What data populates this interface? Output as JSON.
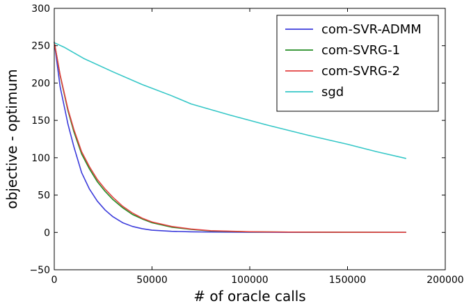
{
  "chart_data": {
    "type": "line",
    "title": "",
    "xlabel": "# of oracle calls",
    "ylabel": "objective - optimum",
    "xlim": [
      0,
      200000
    ],
    "ylim": [
      -50,
      300
    ],
    "xticks": [
      0,
      50000,
      100000,
      150000,
      200000
    ],
    "xtick_labels": [
      "0",
      "50000",
      "100000",
      "150000",
      "200000"
    ],
    "yticks": [
      -50,
      0,
      50,
      100,
      150,
      200,
      250,
      300
    ],
    "ytick_labels": [
      "−50",
      "0",
      "50",
      "100",
      "150",
      "200",
      "250",
      "300"
    ],
    "grid": false,
    "legend_position": "top-right",
    "series": [
      {
        "name": "com-SVR-ADMM",
        "color": "#3b3bdb",
        "x": [
          0,
          3000,
          7000,
          10000,
          14000,
          18000,
          22000,
          26000,
          30000,
          35000,
          40000,
          45000,
          50000,
          60000,
          70000,
          80000,
          100000,
          120000,
          150000,
          180000
        ],
        "y": [
          255,
          195,
          145,
          115,
          80,
          58,
          42,
          30,
          21,
          13,
          8,
          5,
          3,
          1.5,
          0.8,
          0.5,
          0.2,
          0.1,
          0.1,
          0.1
        ]
      },
      {
        "name": "com-SVRG-1",
        "color": "#238b23",
        "x": [
          0,
          3000,
          7000,
          10000,
          14000,
          18000,
          22000,
          26000,
          30000,
          35000,
          40000,
          45000,
          50000,
          60000,
          70000,
          80000,
          100000,
          120000,
          150000,
          180000
        ],
        "y": [
          255,
          210,
          163,
          135,
          105,
          85,
          68,
          55,
          44,
          33,
          24,
          18,
          13,
          7,
          4,
          2,
          0.8,
          0.4,
          0.2,
          0.1
        ]
      },
      {
        "name": "com-SVRG-2",
        "color": "#e34040",
        "x": [
          0,
          3000,
          7000,
          10000,
          14000,
          18000,
          22000,
          26000,
          30000,
          35000,
          40000,
          45000,
          50000,
          60000,
          70000,
          80000,
          100000,
          120000,
          150000,
          180000
        ],
        "y": [
          255,
          211,
          165,
          138,
          108,
          88,
          71,
          58,
          47,
          35,
          26,
          19,
          14,
          8,
          4.5,
          2.3,
          0.9,
          0.4,
          0.2,
          0.1
        ]
      },
      {
        "name": "sgd",
        "color": "#35c7c7",
        "x": [
          0,
          5000,
          15000,
          30000,
          45000,
          60000,
          70000,
          90000,
          110000,
          130000,
          150000,
          165000,
          180000
        ],
        "y": [
          254,
          248,
          233,
          215,
          198,
          183,
          172,
          157,
          143,
          130,
          118,
          108,
          99
        ]
      }
    ]
  }
}
